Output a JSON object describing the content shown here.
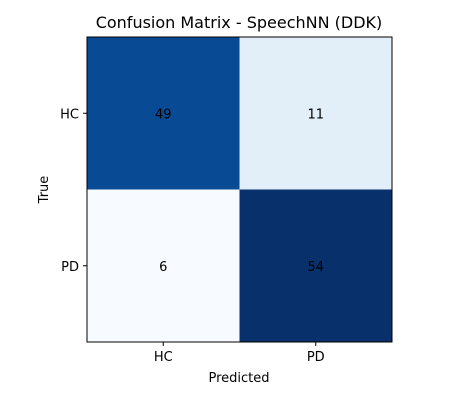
{
  "chart_data": {
    "type": "heatmap",
    "title": "Confusion Matrix - SpeechNN (DDK)",
    "xlabel": "Predicted",
    "ylabel": "True",
    "x_categories": [
      "HC",
      "PD"
    ],
    "y_categories": [
      "HC",
      "PD"
    ],
    "values": [
      [
        49,
        11
      ],
      [
        6,
        54
      ]
    ],
    "colormap": "Blues",
    "colors": {
      "low": "#f7fbff",
      "high": "#08306b"
    }
  }
}
